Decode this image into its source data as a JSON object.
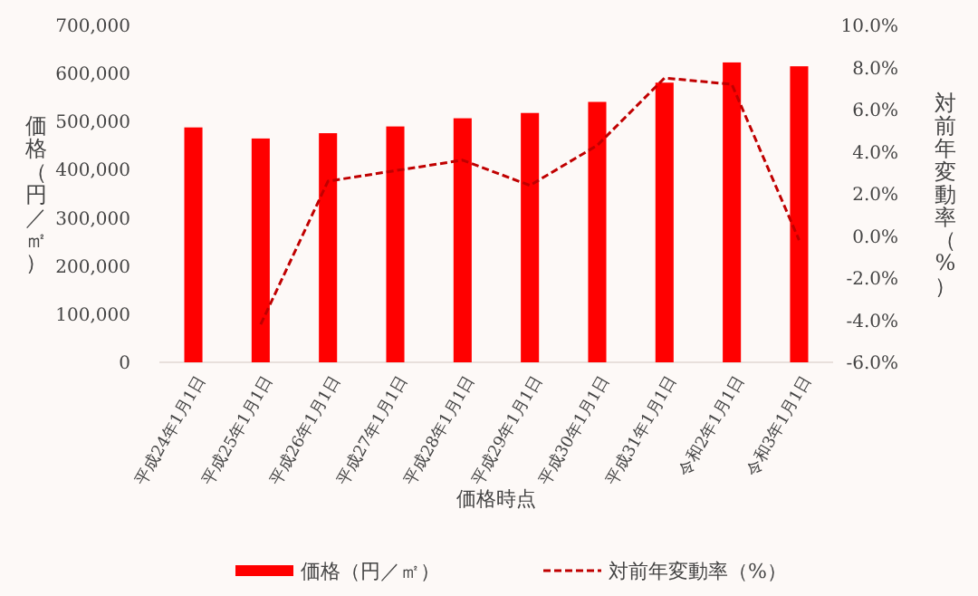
{
  "chart_data": {
    "type": "bar",
    "xlabel": "価格時点",
    "ylabel": "価格（円／㎡）",
    "y2label": "対前年変動率（%）",
    "categories": [
      "平成24年1月1日",
      "平成25年1月1日",
      "平成26年1月1日",
      "平成27年1月1日",
      "平成28年1月1日",
      "平成29年1月1日",
      "平成30年1月1日",
      "平成31年1月1日",
      "令和2年1月1日",
      "令和3年1月1日"
    ],
    "series": [
      {
        "name": "価格（円／㎡）",
        "color": "#ff0000",
        "values": [
          488000,
          465000,
          476000,
          490000,
          507000,
          518000,
          541000,
          581000,
          623000,
          615000
        ]
      },
      {
        "name": "対前年変動率（%）",
        "type": "line",
        "axis": "y2",
        "color": "#c00000",
        "line_style": "dashed",
        "marker": "none",
        "values": [
          null,
          -4.2,
          2.6,
          3.1,
          3.6,
          2.4,
          4.3,
          7.5,
          7.2,
          -0.2
        ]
      }
    ],
    "ylim": [
      0,
      700000
    ],
    "yticks": [
      {
        "value": 0,
        "label": "0"
      },
      {
        "value": 100000,
        "label": "100,000"
      },
      {
        "value": 200000,
        "label": "200,000"
      },
      {
        "value": 300000,
        "label": "300,000"
      },
      {
        "value": 400000,
        "label": "400,000"
      },
      {
        "value": 500000,
        "label": "500,000"
      },
      {
        "value": 600000,
        "label": "600,000"
      },
      {
        "value": 700000,
        "label": "700,000"
      }
    ],
    "y2lim": [
      -6,
      10
    ],
    "y2ticks": [
      {
        "value": -6,
        "label": "-6.0%"
      },
      {
        "value": -4,
        "label": "-4.0%"
      },
      {
        "value": -2,
        "label": "-2.0%"
      },
      {
        "value": 0,
        "label": "0.0%"
      },
      {
        "value": 2,
        "label": "2.0%"
      },
      {
        "value": 4,
        "label": "4.0%"
      },
      {
        "value": 6,
        "label": "6.0%"
      },
      {
        "value": 8,
        "label": "8.0%"
      },
      {
        "value": 10,
        "label": "10.0%"
      }
    ],
    "grid": false,
    "legend": "bottom"
  }
}
